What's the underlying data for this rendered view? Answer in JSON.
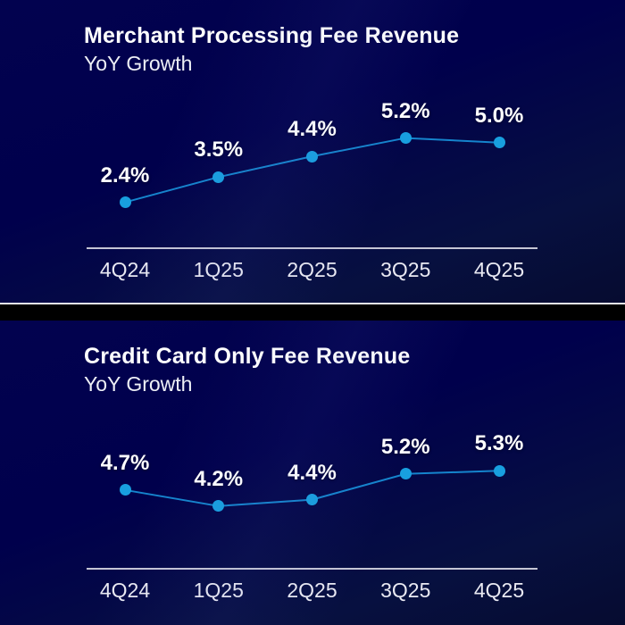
{
  "colors": {
    "accent_blue": "#189fdf",
    "line_blue": "#1584cd",
    "axis_line": "#d6d6e2",
    "tick_text": "#e9e9f2",
    "title_text": "#ffffff",
    "panel_background": "#02024f",
    "divider_line": "#e9e9ef",
    "divider_gap": "#000000"
  },
  "chart_data": [
    {
      "type": "line",
      "title": "Merchant Processing Fee Revenue",
      "subtitle": "YoY Growth",
      "categories": [
        "4Q24",
        "1Q25",
        "2Q25",
        "3Q25",
        "4Q25"
      ],
      "values": [
        2.4,
        3.5,
        4.4,
        5.2,
        5.0
      ],
      "point_labels": [
        "2.4%",
        "3.5%",
        "4.4%",
        "5.2%",
        "5.0%"
      ],
      "unit": "%",
      "ylim": [
        0.4,
        7.4
      ],
      "grid": false,
      "legend": "none",
      "point_color": "#189fdf",
      "line_color": "#1584cd"
    },
    {
      "type": "line",
      "title": "Credit Card Only Fee Revenue",
      "subtitle": "YoY Growth",
      "categories": [
        "4Q24",
        "1Q25",
        "2Q25",
        "3Q25",
        "4Q25"
      ],
      "values": [
        4.7,
        4.2,
        4.4,
        5.2,
        5.3
      ],
      "point_labels": [
        "4.7%",
        "4.2%",
        "4.4%",
        "5.2%",
        "5.3%"
      ],
      "unit": "%",
      "ylim": [
        2.25,
        7.25
      ],
      "grid": false,
      "legend": "none",
      "point_color": "#189fdf",
      "line_color": "#1584cd"
    }
  ]
}
